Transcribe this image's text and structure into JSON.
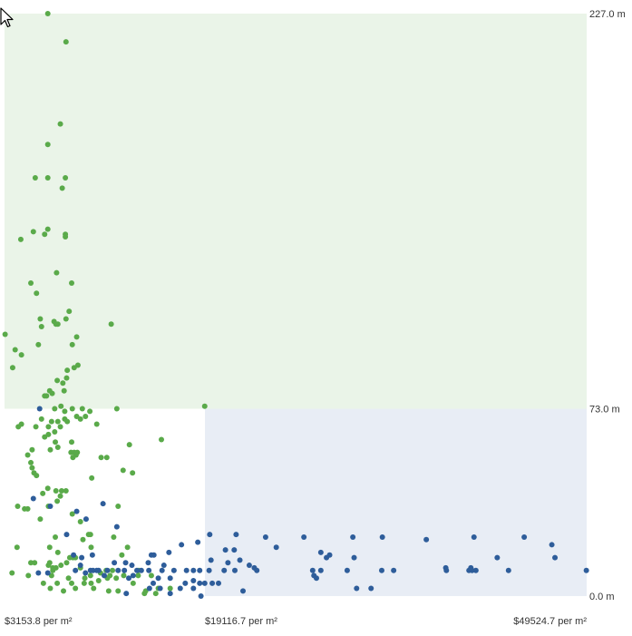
{
  "chart_data": {
    "type": "scatter",
    "title": "",
    "xlabel": "",
    "ylabel": "",
    "x_unit_format": "$%s per m²",
    "y_unit_format": "%s m",
    "xlim": [
      3153.8,
      49524.7
    ],
    "ylim": [
      0.0,
      227.0
    ],
    "x_ticks": [
      {
        "value": 3153.8,
        "label": "$3153.8 per m²"
      },
      {
        "value": 19116.7,
        "label": "$19116.7 per m²"
      },
      {
        "value": 49524.7,
        "label": "$49524.7 per m²"
      }
    ],
    "y_ticks": [
      {
        "value": 227.0,
        "label": "227.0 m"
      },
      {
        "value": 73.0,
        "label": "73.0 m"
      },
      {
        "value": 0.0,
        "label": "0.0 m"
      }
    ],
    "regions": [
      {
        "x": [
          3153.8,
          49524.7
        ],
        "y": [
          73.0,
          227.0
        ],
        "color": "#eaf4e8"
      },
      {
        "x": [
          19116.7,
          49524.7
        ],
        "y": [
          0.0,
          73.0
        ],
        "color": "#e8edf5"
      }
    ],
    "grid": false,
    "legend": "none",
    "series": [
      {
        "color": "#5aaa4a",
        "points": [
          [
            6600,
            227
          ],
          [
            8050,
            216
          ],
          [
            7600,
            184
          ],
          [
            6600,
            176
          ],
          [
            5600,
            163
          ],
          [
            6600,
            163
          ],
          [
            8000,
            163
          ],
          [
            7750,
            159
          ],
          [
            5450,
            142
          ],
          [
            6350,
            141
          ],
          [
            6600,
            143
          ],
          [
            8000,
            141
          ],
          [
            4450,
            139
          ],
          [
            8000,
            140
          ],
          [
            7300,
            126
          ],
          [
            8500,
            122
          ],
          [
            5250,
            122
          ],
          [
            5700,
            118
          ],
          [
            8300,
            111
          ],
          [
            6000,
            108
          ],
          [
            6100,
            105
          ],
          [
            7100,
            107
          ],
          [
            7400,
            106
          ],
          [
            7250,
            106
          ],
          [
            8050,
            108
          ],
          [
            11650,
            106
          ],
          [
            3200,
            102
          ],
          [
            8900,
            101
          ],
          [
            5850,
            98
          ],
          [
            8550,
            98
          ],
          [
            4000,
            96
          ],
          [
            4500,
            94
          ],
          [
            3800,
            89
          ],
          [
            8700,
            89
          ],
          [
            9000,
            90
          ],
          [
            8100,
            85
          ],
          [
            8150,
            88
          ],
          [
            7800,
            83
          ],
          [
            7350,
            84
          ],
          [
            7900,
            80
          ],
          [
            6750,
            80
          ],
          [
            6350,
            78
          ],
          [
            6500,
            78
          ],
          [
            6950,
            79
          ],
          [
            7650,
            74
          ],
          [
            8550,
            73
          ],
          [
            9350,
            73
          ],
          [
            7150,
            73
          ],
          [
            7950,
            72
          ],
          [
            9950,
            72
          ],
          [
            12100,
            73
          ],
          [
            19100,
            74
          ],
          [
            8900,
            70
          ],
          [
            9600,
            70
          ],
          [
            7950,
            69
          ],
          [
            8150,
            68
          ],
          [
            6900,
            68
          ],
          [
            6100,
            69
          ],
          [
            9200,
            69
          ],
          [
            7400,
            68
          ],
          [
            4500,
            67
          ],
          [
            10500,
            67
          ],
          [
            4250,
            66
          ],
          [
            5650,
            66
          ],
          [
            6650,
            66
          ],
          [
            7600,
            66
          ],
          [
            7150,
            64
          ],
          [
            6650,
            63
          ],
          [
            7200,
            60
          ],
          [
            6350,
            62
          ],
          [
            8500,
            60
          ],
          [
            13100,
            59
          ],
          [
            15650,
            61
          ],
          [
            7400,
            58
          ],
          [
            5350,
            57
          ],
          [
            6800,
            57
          ],
          [
            8450,
            56
          ],
          [
            8700,
            56
          ],
          [
            8950,
            56
          ],
          [
            5000,
            55
          ],
          [
            10850,
            54
          ],
          [
            11300,
            54
          ],
          [
            8850,
            55
          ],
          [
            8600,
            54
          ],
          [
            5250,
            52
          ],
          [
            5350,
            50
          ],
          [
            12600,
            49
          ],
          [
            13350,
            48
          ],
          [
            10100,
            46
          ],
          [
            5500,
            48
          ],
          [
            5700,
            47
          ],
          [
            6600,
            42
          ],
          [
            7250,
            41
          ],
          [
            7700,
            41
          ],
          [
            8050,
            41
          ],
          [
            6200,
            40
          ],
          [
            7600,
            39
          ],
          [
            7350,
            37
          ],
          [
            12200,
            35
          ],
          [
            4200,
            35
          ],
          [
            5000,
            34
          ],
          [
            4750,
            34
          ],
          [
            6650,
            35
          ],
          [
            8550,
            32
          ],
          [
            9200,
            29
          ],
          [
            6000,
            30
          ],
          [
            11850,
            23
          ],
          [
            10000,
            24
          ],
          [
            9850,
            24
          ],
          [
            7200,
            23
          ],
          [
            9400,
            22
          ],
          [
            10050,
            19
          ],
          [
            4150,
            19
          ],
          [
            12950,
            19
          ],
          [
            6750,
            19
          ],
          [
            7400,
            17
          ],
          [
            12500,
            16
          ],
          [
            8600,
            15
          ],
          [
            8350,
            15
          ],
          [
            8800,
            15
          ],
          [
            5550,
            13
          ],
          [
            6750,
            13
          ],
          [
            5250,
            13
          ],
          [
            6650,
            12
          ],
          [
            7000,
            11
          ],
          [
            7250,
            11
          ],
          [
            7650,
            12
          ],
          [
            8100,
            13
          ],
          [
            9200,
            11
          ],
          [
            11750,
            10
          ],
          [
            13850,
            10
          ],
          [
            11250,
            10
          ],
          [
            10000,
            8
          ],
          [
            10800,
            9
          ],
          [
            11550,
            8
          ],
          [
            12650,
            8
          ],
          [
            13800,
            8
          ],
          [
            14850,
            8
          ],
          [
            5050,
            8
          ],
          [
            3750,
            9
          ],
          [
            6900,
            8
          ],
          [
            7000,
            10
          ],
          [
            8250,
            7
          ],
          [
            9550,
            7
          ],
          [
            10650,
            6
          ],
          [
            11350,
            7
          ],
          [
            12050,
            7
          ],
          [
            13400,
            5
          ],
          [
            6250,
            5
          ],
          [
            7350,
            5
          ],
          [
            8500,
            5
          ],
          [
            9500,
            5
          ],
          [
            10050,
            5
          ],
          [
            15400,
            3
          ],
          [
            6800,
            3
          ],
          [
            7850,
            2
          ],
          [
            8800,
            3
          ],
          [
            10250,
            3
          ],
          [
            16350,
            3
          ],
          [
            11450,
            2
          ],
          [
            14400,
            2
          ],
          [
            12200,
            2
          ],
          [
            14300,
            1
          ],
          [
            15200,
            1
          ]
        ]
      },
      {
        "color": "#2e5d9a",
        "points": [
          [
            5950,
            73
          ],
          [
            5450,
            38
          ],
          [
            6800,
            35
          ],
          [
            11000,
            36
          ],
          [
            8900,
            33
          ],
          [
            9650,
            30
          ],
          [
            12100,
            27
          ],
          [
            8100,
            24
          ],
          [
            19500,
            24
          ],
          [
            21600,
            24
          ],
          [
            23950,
            23
          ],
          [
            27000,
            23
          ],
          [
            30900,
            23
          ],
          [
            33250,
            23
          ],
          [
            40550,
            23
          ],
          [
            44550,
            23
          ],
          [
            36750,
            22
          ],
          [
            46750,
            20
          ],
          [
            18550,
            21
          ],
          [
            17250,
            20
          ],
          [
            24800,
            19
          ],
          [
            20750,
            18
          ],
          [
            21450,
            18
          ],
          [
            16250,
            17
          ],
          [
            28350,
            17
          ],
          [
            29050,
            16
          ],
          [
            28800,
            15
          ],
          [
            31000,
            15
          ],
          [
            47000,
            15
          ],
          [
            42400,
            15
          ],
          [
            14850,
            16
          ],
          [
            15050,
            16
          ],
          [
            19600,
            14
          ],
          [
            20950,
            13
          ],
          [
            21900,
            14
          ],
          [
            22650,
            12
          ],
          [
            23050,
            11
          ],
          [
            12800,
            13
          ],
          [
            11900,
            13
          ],
          [
            14600,
            13
          ],
          [
            13300,
            12
          ],
          [
            15850,
            12
          ],
          [
            9300,
            15
          ],
          [
            8650,
            16
          ],
          [
            10150,
            16
          ],
          [
            9200,
            12
          ],
          [
            10500,
            10
          ],
          [
            10000,
            10
          ],
          [
            8800,
            10
          ],
          [
            10200,
            10
          ],
          [
            10650,
            10
          ],
          [
            11350,
            10
          ],
          [
            12200,
            10
          ],
          [
            12700,
            10
          ],
          [
            13700,
            10
          ],
          [
            14050,
            10
          ],
          [
            14650,
            10
          ],
          [
            15700,
            10
          ],
          [
            16650,
            10
          ],
          [
            17650,
            10
          ],
          [
            18200,
            10
          ],
          [
            18700,
            10
          ],
          [
            19450,
            10
          ],
          [
            20650,
            10
          ],
          [
            21500,
            10
          ],
          [
            23250,
            10
          ],
          [
            27700,
            10
          ],
          [
            28350,
            10
          ],
          [
            30450,
            10
          ],
          [
            33200,
            10
          ],
          [
            34150,
            10
          ],
          [
            38350,
            10
          ],
          [
            40150,
            10
          ],
          [
            40400,
            10
          ],
          [
            40700,
            10
          ],
          [
            40300,
            11
          ],
          [
            38300,
            11
          ],
          [
            43300,
            10
          ],
          [
            49500,
            10
          ],
          [
            5850,
            9
          ],
          [
            6600,
            9
          ],
          [
            9600,
            9
          ],
          [
            11100,
            8
          ],
          [
            13400,
            8
          ],
          [
            13050,
            7
          ],
          [
            15400,
            7
          ],
          [
            16350,
            7
          ],
          [
            18200,
            6
          ],
          [
            18700,
            5
          ],
          [
            19100,
            5
          ],
          [
            19700,
            5
          ],
          [
            20200,
            5
          ],
          [
            27800,
            8
          ],
          [
            28000,
            7
          ],
          [
            15000,
            5
          ],
          [
            17550,
            5
          ],
          [
            15550,
            3
          ],
          [
            31200,
            3
          ],
          [
            32350,
            3
          ],
          [
            14700,
            3
          ],
          [
            17150,
            3
          ],
          [
            18200,
            3
          ],
          [
            16350,
            1
          ],
          [
            12850,
            1
          ],
          [
            18800,
            0
          ],
          [
            22150,
            2
          ]
        ]
      }
    ]
  }
}
